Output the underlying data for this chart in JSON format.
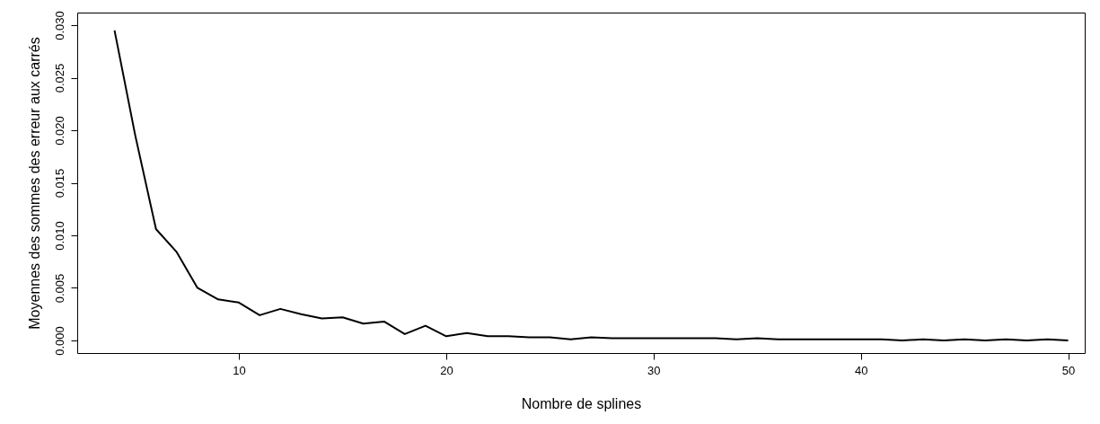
{
  "chart_data": {
    "type": "line",
    "xlabel": "Nombre de splines",
    "ylabel": "Moyennes des sommes des erreur aux carrés",
    "x": [
      4,
      5,
      6,
      7,
      8,
      9,
      10,
      11,
      12,
      13,
      14,
      15,
      16,
      17,
      18,
      19,
      20,
      21,
      22,
      23,
      24,
      25,
      26,
      27,
      28,
      29,
      30,
      31,
      32,
      33,
      34,
      35,
      36,
      37,
      38,
      39,
      40,
      41,
      42,
      43,
      44,
      45,
      46,
      47,
      48,
      49,
      50
    ],
    "series": [
      {
        "color": "#000000",
        "values": [
          0.0295,
          0.0195,
          0.0106,
          0.0084,
          0.005,
          0.0039,
          0.0036,
          0.0024,
          0.003,
          0.0025,
          0.0021,
          0.0022,
          0.0016,
          0.0018,
          0.0006,
          0.0014,
          0.0004,
          0.0007,
          0.0004,
          0.0004,
          0.0003,
          0.0003,
          0.0001,
          0.0003,
          0.0002,
          0.0002,
          0.0002,
          0.0002,
          0.0002,
          0.0002,
          0.0001,
          0.0002,
          0.0001,
          0.0001,
          0.0001,
          0.0001,
          0.0001,
          0.0001,
          0.0,
          0.0001,
          0.0,
          0.0001,
          0.0,
          0.0001,
          0.0,
          0.0001,
          0.0
        ]
      }
    ],
    "xlim": [
      2.2,
      50.8
    ],
    "ylim": [
      -0.0012,
      0.0312
    ],
    "xticks": [
      10,
      20,
      30,
      40,
      50
    ],
    "yticks": [
      {
        "value": 0,
        "label": "0.000"
      },
      {
        "value": 0.005,
        "label": "0.005"
      },
      {
        "value": 0.01,
        "label": "0.010"
      },
      {
        "value": 0.015,
        "label": "0.015"
      },
      {
        "value": 0.02,
        "label": "0.020"
      },
      {
        "value": 0.025,
        "label": "0.025"
      },
      {
        "value": 0.03,
        "label": "0.030"
      }
    ],
    "grid": false
  }
}
